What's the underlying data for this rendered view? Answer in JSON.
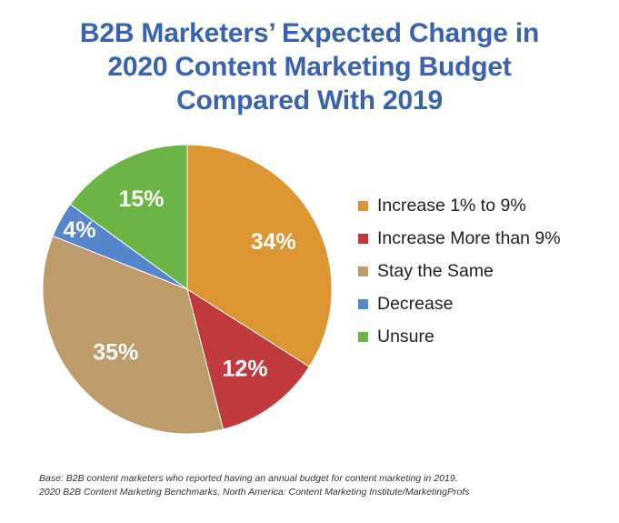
{
  "title_lines": [
    "B2B Marketers’ Expected Change in",
    "2020 Content Marketing Budget",
    "Compared With 2019"
  ],
  "chart_data": {
    "type": "pie",
    "title": "B2B Marketers’ Expected Change in 2020 Content Marketing Budget Compared With 2019",
    "categories": [
      "Increase 1% to 9%",
      "Increase More than 9%",
      "Stay the Same",
      "Decrease",
      "Unsure"
    ],
    "values": [
      34,
      12,
      35,
      4,
      15
    ],
    "labels": [
      "34%",
      "12%",
      "35%",
      "4%",
      "15%"
    ],
    "colors": [
      "#dc9530",
      "#c0393d",
      "#bd9b6b",
      "#5585cb",
      "#6ab545"
    ],
    "start": "12 o'clock",
    "direction": "clockwise",
    "legend_position": "right"
  },
  "legend": {
    "items": [
      {
        "label": "Increase 1% to 9%",
        "color": "#dc9530"
      },
      {
        "label": "Increase More than 9%",
        "color": "#c0393d"
      },
      {
        "label": "Stay the Same",
        "color": "#bd9b6b"
      },
      {
        "label": "Decrease",
        "color": "#5585cb"
      },
      {
        "label": "Unsure",
        "color": "#6ab545"
      }
    ]
  },
  "footnote": {
    "line1": "Base: B2B content marketers who reported having an annual budget for content marketing in 2019.",
    "line2": "2020 B2B Content Marketing Benchmarks, North America: Content Marketing Institute/MarketingProfs"
  }
}
